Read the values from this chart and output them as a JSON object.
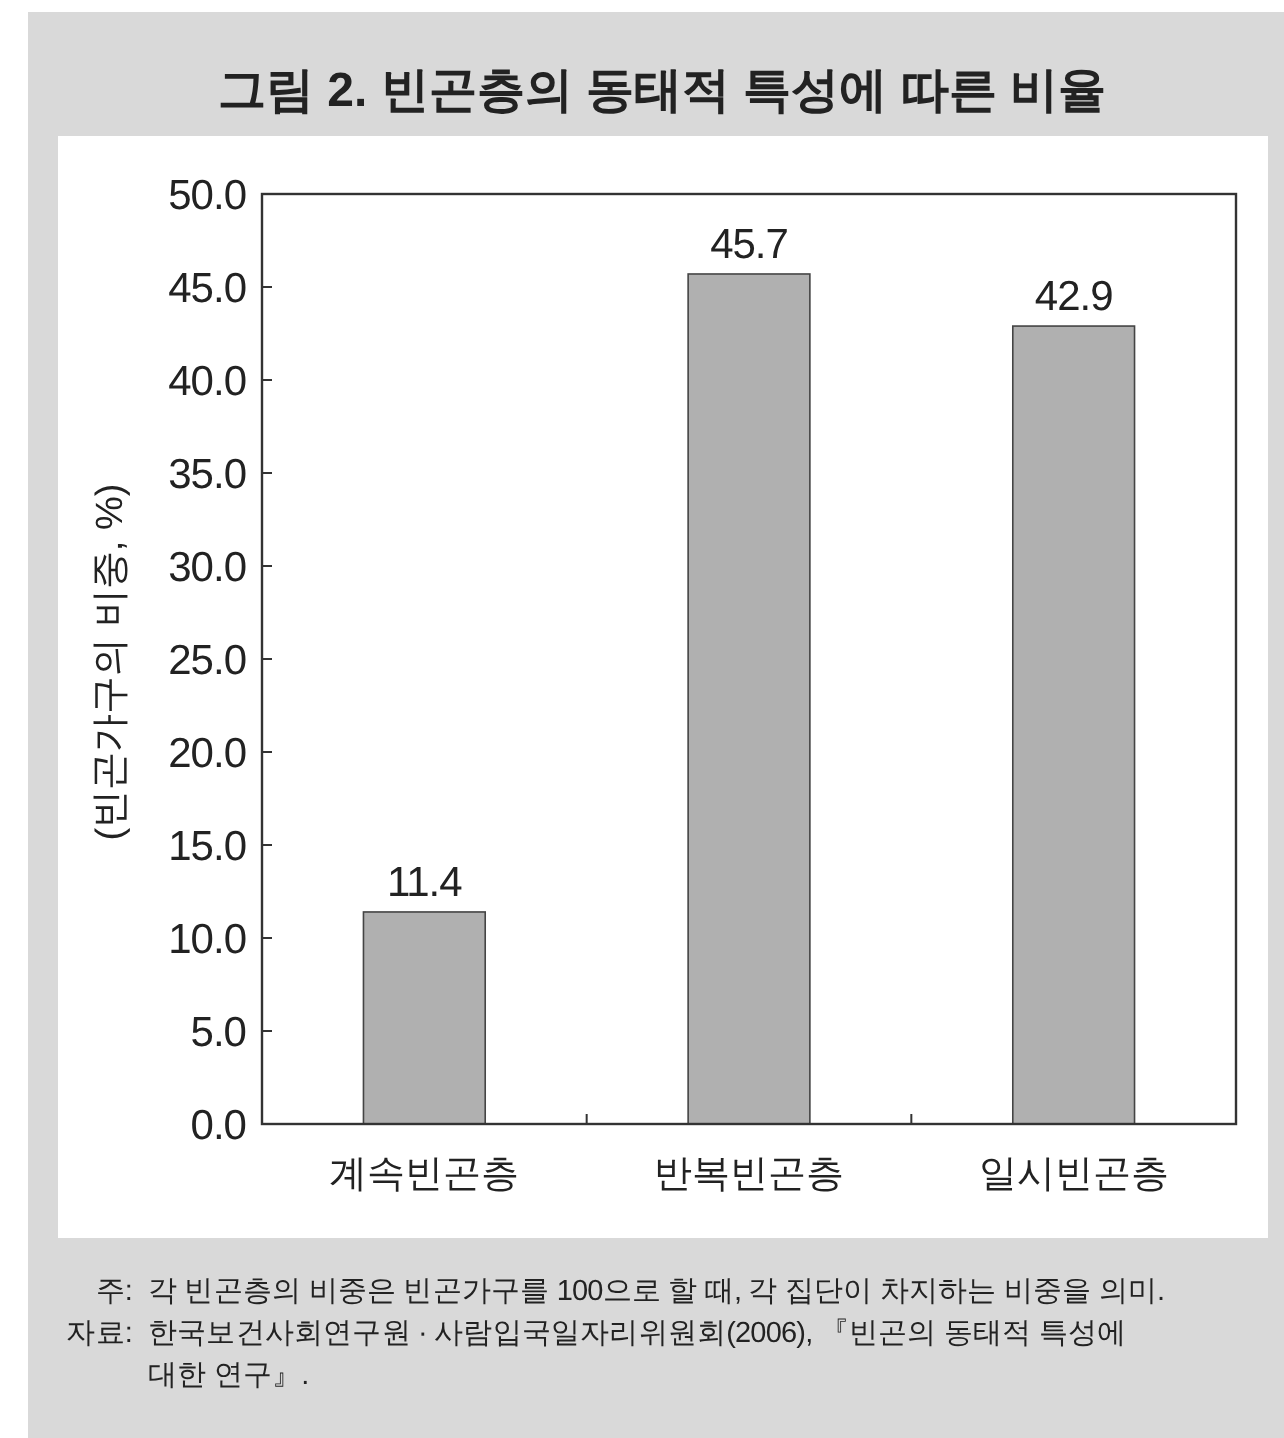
{
  "chart_data": {
    "type": "bar",
    "title": "그림 2. 빈곤층의 동태적 특성에 따른 비율",
    "ylabel": "(빈곤가구의 비중, %)",
    "categories": [
      "계속빈곤층",
      "반복빈곤층",
      "일시빈곤층"
    ],
    "values": [
      11.4,
      45.7,
      42.9
    ],
    "color": "#b0b0b0",
    "ylim": [
      0,
      50
    ],
    "yticks": [
      {
        "value": 0,
        "label": "0.0"
      },
      {
        "value": 5,
        "label": "5.0"
      },
      {
        "value": 10,
        "label": "10.0"
      },
      {
        "value": 15,
        "label": "15.0"
      },
      {
        "value": 20,
        "label": "20.0"
      },
      {
        "value": 25,
        "label": "25.0"
      },
      {
        "value": 30,
        "label": "30.0"
      },
      {
        "value": 35,
        "label": "35.0"
      },
      {
        "value": 40,
        "label": "40.0"
      },
      {
        "value": 45,
        "label": "45.0"
      },
      {
        "value": 50,
        "label": "50.0"
      }
    ],
    "data_labels": true,
    "annotations": [
      "주: 각 빈곤층의 비중은 빈곤가구를 100으로 할 때, 각 집단이 차지하는 비중을 의미.",
      "자료: 한국보건사회연구원 · 사람입국일자리위원회(2006), 『빈곤의 동태적 특성에 대한 연구』."
    ]
  }
}
